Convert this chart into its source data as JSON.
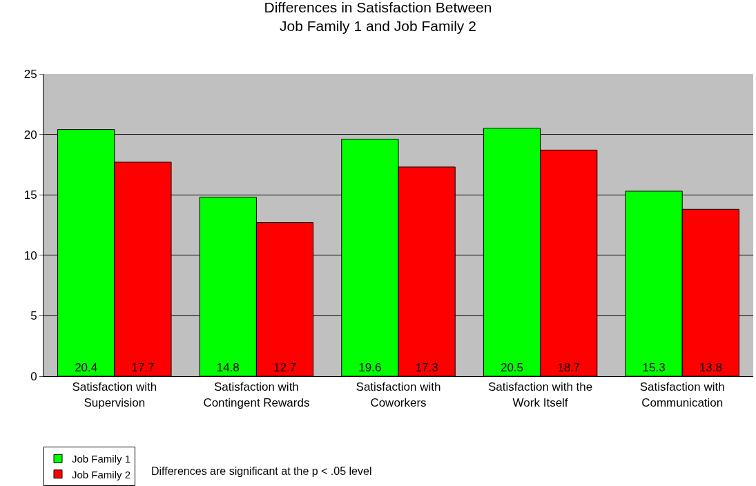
{
  "chart_data": {
    "type": "bar",
    "title": "Differences in Satisfaction Between Job Family 1 and Job Family 2",
    "categories": [
      "Satisfaction with Supervision",
      "Satisfaction with Contingent Rewards",
      "Satisfaction with Coworkers",
      "Satisfaction with the Work Itself",
      "Satisfaction with Communication"
    ],
    "series": [
      {
        "name": "Job Family 1",
        "color": "#00ff00",
        "values": [
          20.4,
          14.8,
          19.6,
          20.5,
          15.3
        ]
      },
      {
        "name": "Job Family 2",
        "color": "#ff0000",
        "values": [
          17.7,
          12.7,
          17.3,
          18.7,
          13.8
        ]
      }
    ],
    "ylim": [
      0,
      25
    ],
    "yticks": [
      0,
      5,
      10,
      15,
      20,
      25
    ],
    "grid": "y",
    "legend": "bottom left",
    "data_labels": true,
    "annotations": [
      "Differences are significant at the p < .05 level"
    ]
  }
}
